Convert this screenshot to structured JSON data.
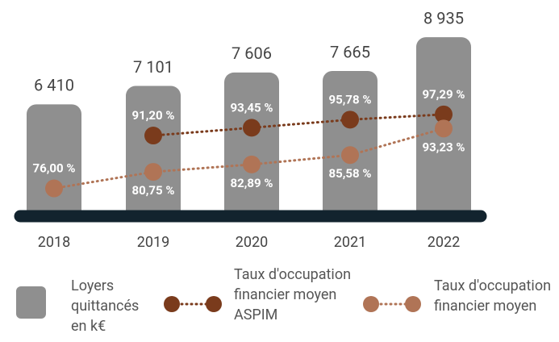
{
  "chart_data": {
    "type": "bar",
    "categories": [
      "2018",
      "2019",
      "2020",
      "2021",
      "2022"
    ],
    "series": [
      {
        "name": "Loyers quittancés en k€",
        "type": "bar",
        "color": "#8f8f8f",
        "values": [
          6410,
          7101,
          7606,
          7665,
          8935
        ],
        "value_labels": [
          "6 410",
          "7 101",
          "7 606",
          "7 665",
          "8 935"
        ]
      },
      {
        "name": "Taux d'occupation financier moyen ASPIM",
        "type": "line",
        "axis": "y2",
        "color": "#7a3b1c",
        "values": [
          null,
          91.2,
          93.45,
          95.78,
          97.29
        ],
        "value_labels": [
          null,
          "91,20 %",
          "93,45 %",
          "95,78 %",
          "97,29 %"
        ]
      },
      {
        "name": "Taux d'occupation financier moyen",
        "type": "line",
        "axis": "y2",
        "color": "#b07456",
        "values": [
          76.0,
          80.75,
          82.89,
          85.58,
          93.23
        ],
        "value_labels": [
          "76,00 %",
          "80,75 %",
          "82,89 %",
          "85,58 %",
          "93,23 %"
        ]
      }
    ],
    "ylim": [
      2200,
      9000
    ],
    "y2lim": [
      68,
      120
    ]
  }
}
